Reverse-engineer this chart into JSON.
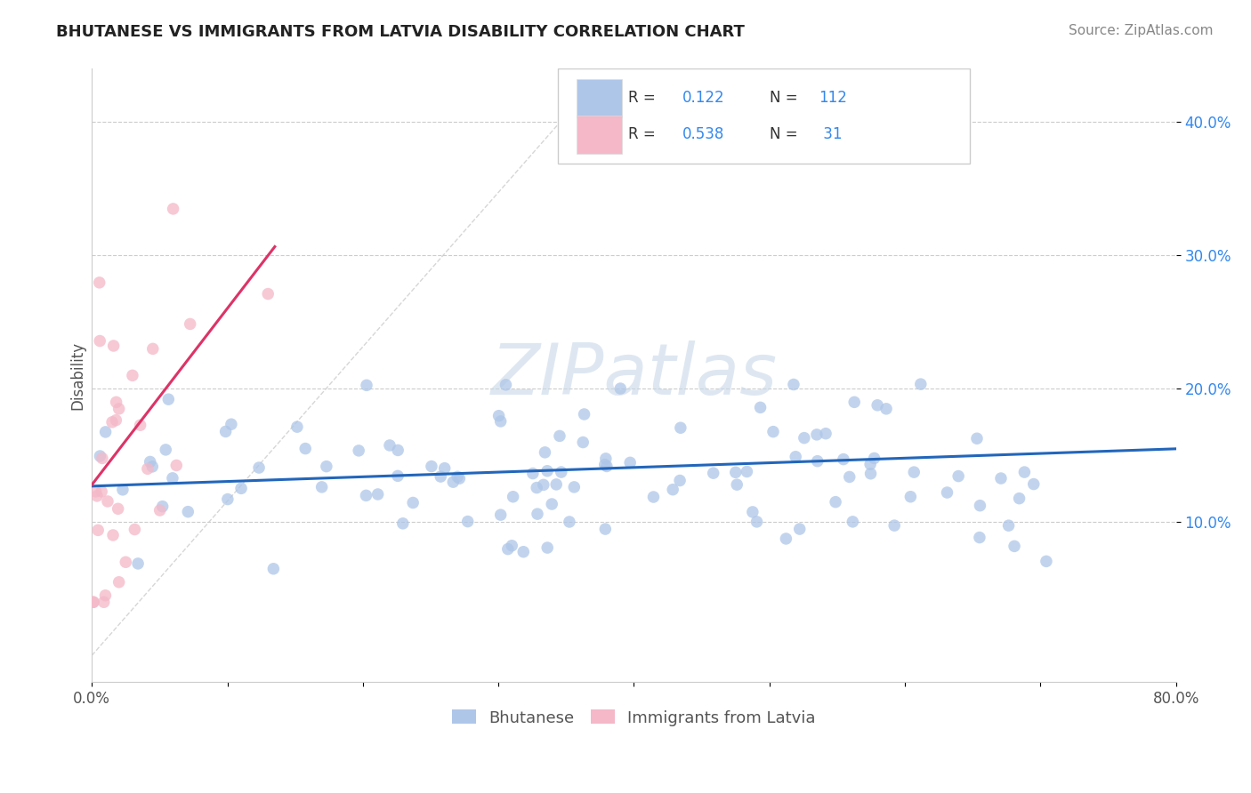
{
  "title": "BHUTANESE VS IMMIGRANTS FROM LATVIA DISABILITY CORRELATION CHART",
  "source": "Source: ZipAtlas.com",
  "ylabel": "Disability",
  "xlim": [
    0.0,
    0.8
  ],
  "ylim": [
    -0.02,
    0.44
  ],
  "yticks": [
    0.1,
    0.2,
    0.3,
    0.4
  ],
  "ytick_labels": [
    "10.0%",
    "20.0%",
    "30.0%",
    "40.0%"
  ],
  "xtick_positions": [
    0.0,
    0.1,
    0.2,
    0.3,
    0.4,
    0.5,
    0.6,
    0.7,
    0.8
  ],
  "xtick_labels": [
    "0.0%",
    "",
    "",
    "",
    "",
    "",
    "",
    "",
    "80.0%"
  ],
  "blue_R": 0.122,
  "blue_N": 112,
  "pink_R": 0.538,
  "pink_N": 31,
  "blue_color": "#aec6e8",
  "pink_color": "#f4b8c8",
  "blue_line_color": "#2266bb",
  "pink_line_color": "#dd3366",
  "diag_line_color": "#cccccc",
  "background_color": "#ffffff",
  "grid_color": "#cccccc",
  "watermark_text": "ZIPatlas",
  "watermark_color": "#c8d8e8",
  "legend_labels": [
    "Bhutanese",
    "Immigrants from Latvia"
  ],
  "title_fontsize": 13,
  "source_fontsize": 11,
  "tick_fontsize": 12,
  "ylabel_fontsize": 12
}
